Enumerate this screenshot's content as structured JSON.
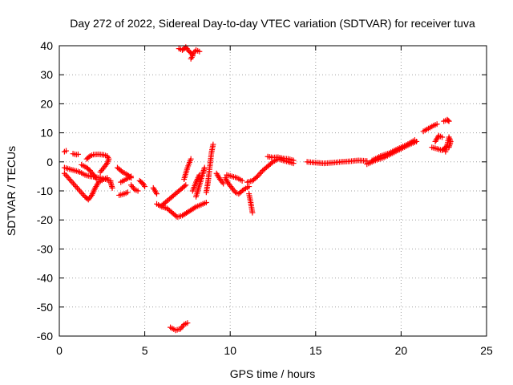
{
  "chart_data": {
    "type": "scatter",
    "title": "Day 272 of 2022, Sidereal Day-to-day VTEC variation (SDTVAR) for receiver tuva",
    "xlabel": "GPS time / hours",
    "ylabel": "SDTVAR / TECUs",
    "xlim": [
      0,
      25
    ],
    "ylim": [
      -60,
      40
    ],
    "xticks": [
      0,
      5,
      10,
      15,
      20,
      25
    ],
    "yticks": [
      40,
      30,
      20,
      10,
      0,
      -10,
      -20,
      -30,
      -40,
      -50,
      -60
    ],
    "grid": true,
    "marker": "+",
    "color": "#ff0000",
    "series": [
      {
        "name": "SDTVAR",
        "segments": [
          [
            [
              0.3,
              3.5
            ],
            [
              0.4,
              3.8
            ]
          ],
          [
            [
              0.8,
              2.8
            ],
            [
              1.0,
              2.5
            ],
            [
              1.1,
              2.6
            ]
          ],
          [
            [
              0.3,
              -4.0
            ],
            [
              0.6,
              -6.0
            ],
            [
              0.9,
              -8.0
            ],
            [
              1.2,
              -10.0
            ],
            [
              1.5,
              -12.0
            ],
            [
              1.7,
              -13.0
            ],
            [
              1.9,
              -11.5
            ],
            [
              2.1,
              -9.0
            ],
            [
              2.3,
              -7.0
            ],
            [
              2.6,
              -6.0
            ],
            [
              2.8,
              -5.5
            ]
          ],
          [
            [
              0.3,
              -2.0
            ],
            [
              0.6,
              -2.5
            ],
            [
              0.9,
              -3.0
            ],
            [
              1.2,
              -3.5
            ],
            [
              1.5,
              -4.5
            ],
            [
              1.8,
              -5.0
            ],
            [
              2.1,
              -5.2
            ],
            [
              2.4,
              -5.5
            ],
            [
              2.7,
              -6.0
            ],
            [
              3.0,
              -6.5
            ]
          ],
          [
            [
              1.3,
              -1.0
            ],
            [
              1.6,
              -2.0
            ],
            [
              1.8,
              -3.0
            ],
            [
              2.0,
              -4.5
            ],
            [
              2.2,
              -6.0
            ]
          ],
          [
            [
              1.6,
              1.0
            ],
            [
              1.8,
              2.0
            ],
            [
              2.0,
              2.5
            ],
            [
              2.3,
              2.6
            ],
            [
              2.6,
              2.4
            ],
            [
              2.8,
              2.0
            ],
            [
              2.9,
              1.0
            ],
            [
              2.8,
              -0.5
            ],
            [
              2.6,
              -2.0
            ],
            [
              2.4,
              -3.5
            ]
          ],
          [
            [
              3.0,
              -7.0
            ],
            [
              3.1,
              -9.0
            ]
          ],
          [
            [
              3.4,
              -2.0
            ],
            [
              3.7,
              -3.5
            ],
            [
              4.0,
              -4.5
            ],
            [
              4.2,
              -5.5
            ]
          ],
          [
            [
              3.5,
              -11.5
            ],
            [
              3.8,
              -11.0
            ],
            [
              4.0,
              -10.5
            ]
          ],
          [
            [
              3.6,
              -7.0
            ],
            [
              3.9,
              -6.0
            ],
            [
              4.2,
              -5.0
            ]
          ],
          [
            [
              4.2,
              -8.0
            ],
            [
              4.4,
              -9.5
            ],
            [
              4.6,
              -10.0
            ]
          ],
          [
            [
              4.7,
              -6.5
            ],
            [
              4.9,
              -7.5
            ],
            [
              5.0,
              -8.5
            ]
          ],
          [
            [
              5.5,
              -9.0
            ],
            [
              5.7,
              -11.0
            ]
          ],
          [
            [
              5.7,
              -14.5
            ],
            [
              6.0,
              -15.5
            ],
            [
              6.3,
              -16.0
            ],
            [
              6.6,
              -17.5
            ],
            [
              6.9,
              -19.0
            ],
            [
              7.2,
              -18.5
            ],
            [
              7.6,
              -17.0
            ],
            [
              8.0,
              -15.5
            ],
            [
              8.4,
              -14.5
            ],
            [
              8.6,
              -14.0
            ]
          ],
          [
            [
              6.0,
              -15.0
            ],
            [
              6.3,
              -13.5
            ],
            [
              6.6,
              -12.0
            ],
            [
              6.9,
              -10.5
            ],
            [
              7.2,
              -9.0
            ],
            [
              7.4,
              -8.0
            ]
          ],
          [
            [
              7.3,
              -6.0
            ],
            [
              7.5,
              -2.0
            ],
            [
              7.7,
              1.0
            ]
          ],
          [
            [
              7.8,
              -10.0
            ],
            [
              8.0,
              -7.0
            ],
            [
              8.2,
              -4.5
            ]
          ],
          [
            [
              8.0,
              -12.0
            ],
            [
              8.2,
              -8.0
            ],
            [
              8.4,
              -4.0
            ],
            [
              8.5,
              -2.0
            ]
          ],
          [
            [
              8.6,
              -10.5
            ],
            [
              8.7,
              -7.0
            ],
            [
              8.8,
              -2.0
            ],
            [
              8.9,
              3.0
            ],
            [
              9.0,
              6.0
            ]
          ],
          [
            [
              9.2,
              -4.0
            ],
            [
              9.4,
              -6.0
            ],
            [
              9.6,
              -7.5
            ]
          ],
          [
            [
              9.7,
              -5.5
            ],
            [
              9.9,
              -7.5
            ],
            [
              10.1,
              -9.0
            ],
            [
              10.3,
              -10.5
            ],
            [
              10.5,
              -11.0
            ],
            [
              10.8,
              -9.5
            ],
            [
              11.1,
              -8.5
            ]
          ],
          [
            [
              9.8,
              -4.5
            ],
            [
              10.1,
              -5.0
            ],
            [
              10.4,
              -5.5
            ],
            [
              10.7,
              -6.5
            ]
          ],
          [
            [
              11.1,
              -11.0
            ],
            [
              11.2,
              -14.0
            ],
            [
              11.3,
              -17.5
            ]
          ],
          [
            [
              11.0,
              -7.0
            ],
            [
              11.3,
              -6.5
            ],
            [
              11.6,
              -5.0
            ],
            [
              11.9,
              -3.0
            ],
            [
              12.2,
              -1.5
            ],
            [
              12.5,
              0.0
            ],
            [
              12.8,
              1.0
            ],
            [
              13.1,
              0.5
            ],
            [
              13.4,
              0.0
            ],
            [
              13.7,
              -0.5
            ]
          ],
          [
            [
              12.2,
              1.8
            ],
            [
              12.5,
              1.5
            ],
            [
              12.8,
              1.6
            ],
            [
              13.1,
              1.2
            ],
            [
              13.4,
              1.0
            ],
            [
              13.7,
              0.5
            ]
          ],
          [
            [
              14.5,
              0.0
            ],
            [
              15.0,
              -0.3
            ],
            [
              15.5,
              -0.5
            ],
            [
              16.0,
              -0.3
            ],
            [
              16.5,
              0.0
            ],
            [
              17.0,
              0.2
            ],
            [
              17.5,
              0.5
            ],
            [
              18.0,
              0.3
            ]
          ],
          [
            [
              18.0,
              -0.8
            ],
            [
              18.5,
              0.5
            ],
            [
              19.0,
              1.5
            ],
            [
              19.5,
              3.0
            ],
            [
              20.0,
              4.5
            ],
            [
              20.5,
              6.0
            ],
            [
              20.9,
              7.0
            ]
          ],
          [
            [
              18.3,
              0.5
            ],
            [
              18.8,
              2.0
            ],
            [
              19.3,
              3.0
            ],
            [
              19.8,
              4.5
            ],
            [
              20.3,
              5.8
            ],
            [
              20.8,
              7.5
            ]
          ],
          [
            [
              21.3,
              10.5
            ],
            [
              21.6,
              11.5
            ],
            [
              21.9,
              12.5
            ],
            [
              22.1,
              13.0
            ]
          ],
          [
            [
              22.0,
              7.0
            ],
            [
              22.2,
              9.0
            ],
            [
              22.4,
              8.5
            ]
          ],
          [
            [
              21.8,
              5.0
            ],
            [
              22.1,
              4.5
            ],
            [
              22.4,
              4.0
            ],
            [
              22.6,
              5.0
            ]
          ],
          [
            [
              22.5,
              14.0
            ],
            [
              22.7,
              14.5
            ],
            [
              22.8,
              14.0
            ]
          ],
          [
            [
              22.6,
              3.5
            ],
            [
              22.7,
              6.0
            ],
            [
              22.8,
              8.5
            ],
            [
              22.9,
              7.0
            ],
            [
              22.8,
              5.0
            ]
          ],
          [
            [
              7.0,
              39.0
            ],
            [
              7.2,
              38.5
            ],
            [
              7.4,
              39.5
            ],
            [
              7.6,
              38.0
            ],
            [
              7.8,
              37.0
            ],
            [
              8.0,
              38.5
            ],
            [
              8.2,
              38.0
            ]
          ],
          [
            [
              7.7,
              35.5
            ],
            [
              7.8,
              36.5
            ]
          ],
          [
            [
              6.5,
              -57.0
            ],
            [
              6.8,
              -58.0
            ],
            [
              7.1,
              -57.5
            ],
            [
              7.3,
              -56.0
            ],
            [
              7.5,
              -55.5
            ]
          ]
        ]
      }
    ]
  }
}
